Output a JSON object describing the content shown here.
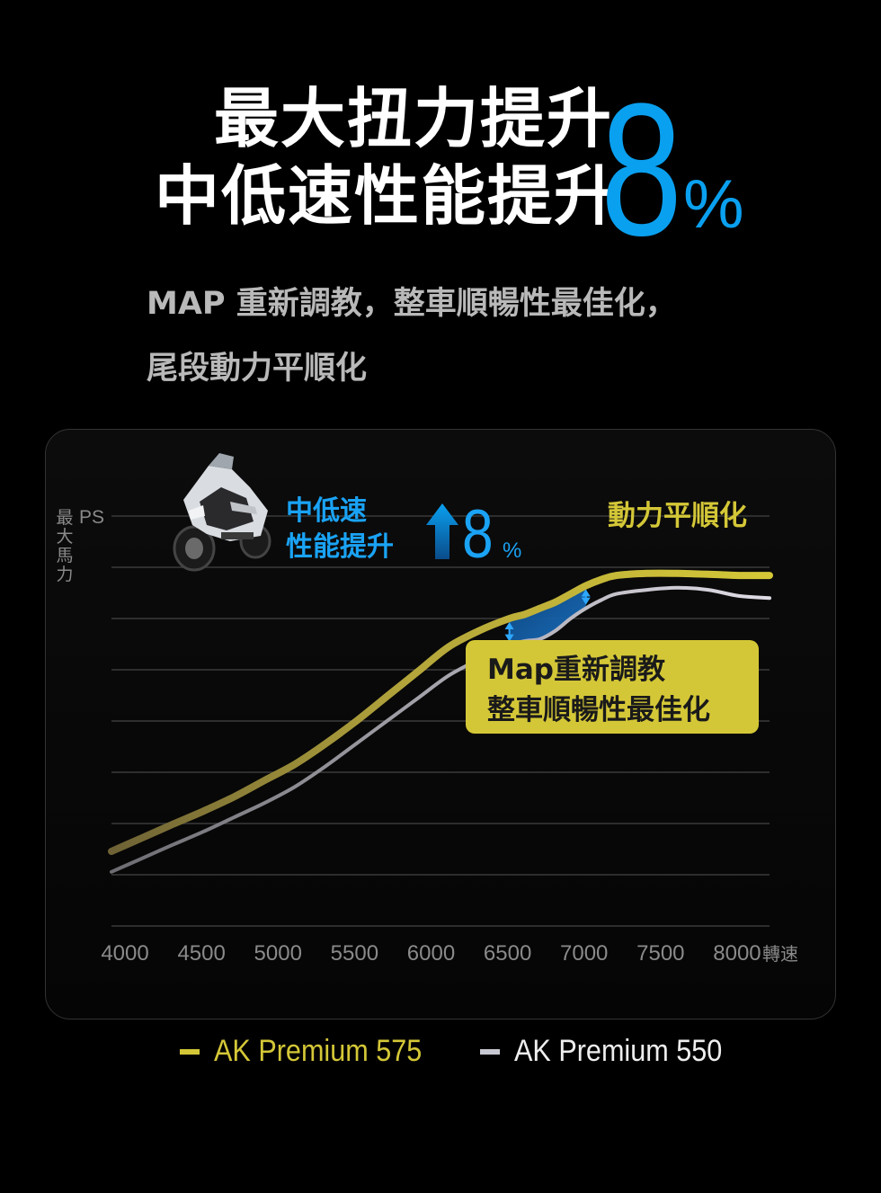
{
  "headline": {
    "line1": "最大扭力提升",
    "line2": "中低速性能提升",
    "number": "8",
    "percent": "%"
  },
  "subtitle": {
    "line1": "MAP 重新調教，整車順暢性最佳化，",
    "line2": "尾段動力平順化"
  },
  "colors": {
    "background": "#000000",
    "accent_blue": "#0aa0f0",
    "series_575": "#d4c737",
    "series_550": "#c8c8d2",
    "callout_bg": "#d4c737",
    "callout_text": "#1a1a1a"
  },
  "chart_data": {
    "type": "line",
    "ylabel": "最大馬力",
    "yunit": "PS",
    "xlabel": "轉速",
    "x": [
      4000,
      4500,
      5000,
      5500,
      6000,
      6500,
      7000,
      7500,
      8000
    ],
    "xlim": [
      3900,
      8200
    ],
    "ylim": [
      0,
      10
    ],
    "grid": true,
    "legend_position": "bottom",
    "series": [
      {
        "name": "AK Premium 575",
        "color": "#d4c737",
        "x": [
          3900,
          4100,
          4300,
          4500,
          4700,
          4900,
          5100,
          5300,
          5500,
          5700,
          5900,
          6100,
          6300,
          6500,
          6600,
          6700,
          6800,
          6900,
          7000,
          7100,
          7200,
          7400,
          7600,
          7800,
          8000,
          8200
        ],
        "values": [
          1.82,
          2.15,
          2.48,
          2.8,
          3.15,
          3.55,
          3.95,
          4.45,
          5.0,
          5.6,
          6.2,
          6.8,
          7.2,
          7.5,
          7.6,
          7.75,
          7.9,
          8.1,
          8.3,
          8.45,
          8.55,
          8.6,
          8.6,
          8.58,
          8.55,
          8.55
        ]
      },
      {
        "name": "AK Premium 550",
        "color": "#c8c8d2",
        "x": [
          3900,
          4100,
          4300,
          4500,
          4700,
          4900,
          5100,
          5300,
          5500,
          5700,
          5900,
          6100,
          6300,
          6500,
          6600,
          6700,
          6800,
          6900,
          7000,
          7100,
          7200,
          7400,
          7600,
          7800,
          8000,
          8200
        ],
        "values": [
          1.32,
          1.65,
          1.98,
          2.3,
          2.65,
          3.0,
          3.4,
          3.9,
          4.45,
          5.0,
          5.55,
          6.1,
          6.5,
          6.85,
          6.95,
          7.0,
          7.2,
          7.5,
          7.75,
          7.95,
          8.1,
          8.2,
          8.25,
          8.2,
          8.05,
          8.0
        ]
      }
    ],
    "annotations": {
      "gain_label_line1": "中低速",
      "gain_label_line2": "性能提升",
      "gain_number": "8",
      "gain_percent": "%",
      "smooth_label": "動力平順化",
      "callout_line1": "Map重新調教",
      "callout_line2": "整車順暢性最佳化",
      "gain_from_rpm": 6500,
      "gain_to_rpm": 7000
    }
  },
  "legend": {
    "item1": "AK Premium 575",
    "item2": "AK Premium 550"
  }
}
